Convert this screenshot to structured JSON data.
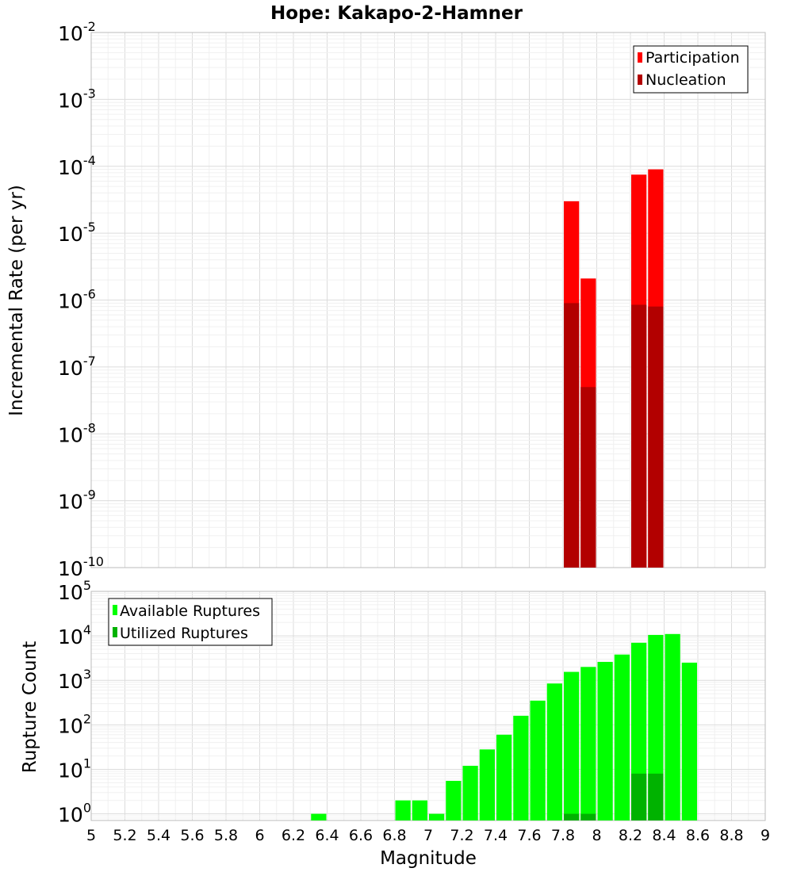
{
  "chart_data": [
    {
      "type": "bar",
      "title": "Hope: Kakapo-2-Hamner",
      "xlabel": "",
      "ylabel": "Incremental Rate (per yr)",
      "xlim": [
        5,
        9
      ],
      "ylim_log10": [
        -10,
        -2
      ],
      "yscale": "log",
      "ytick_exponents": [
        "-10",
        "-9",
        "-8",
        "-7",
        "-6",
        "-5",
        "-4",
        "-3",
        "-2"
      ],
      "bar_width": 0.1,
      "legend_position": "top-right",
      "series": [
        {
          "name": "Participation",
          "color": "#ff0000",
          "x": [
            7.85,
            7.95,
            8.25,
            8.35
          ],
          "values": [
            3e-05,
            2.1e-06,
            7.5e-05,
            9e-05
          ]
        },
        {
          "name": "Nucleation",
          "color": "#b20000",
          "x": [
            7.85,
            7.95,
            8.25,
            8.35
          ],
          "values": [
            9e-07,
            5e-08,
            8.5e-07,
            8e-07
          ]
        }
      ]
    },
    {
      "type": "bar",
      "title": "",
      "xlabel": "Magnitude",
      "ylabel": "Rupture Count",
      "xlim": [
        5,
        9
      ],
      "ylim_log10": [
        -0.15,
        5
      ],
      "yscale": "log",
      "ytick_exponents": [
        "0",
        "1",
        "2",
        "3",
        "4",
        "5"
      ],
      "xtick_labels": [
        "5",
        "5.2",
        "5.4",
        "5.6",
        "5.8",
        "6",
        "6.2",
        "6.4",
        "6.6",
        "6.8",
        "7",
        "7.2",
        "7.4",
        "7.6",
        "7.8",
        "8",
        "8.2",
        "8.4",
        "8.6",
        "8.8",
        "9"
      ],
      "bar_width": 0.1,
      "legend_position": "top-left",
      "series": [
        {
          "name": "Available Ruptures",
          "color": "#00ff00",
          "x": [
            6.35,
            6.85,
            6.95,
            7.05,
            7.15,
            7.25,
            7.35,
            7.45,
            7.55,
            7.65,
            7.75,
            7.85,
            7.95,
            8.05,
            8.15,
            8.25,
            8.35,
            8.45,
            8.55
          ],
          "values": [
            1,
            2,
            2,
            1,
            5.5,
            12,
            28,
            60,
            160,
            350,
            850,
            1550,
            2000,
            2600,
            3800,
            7000,
            10500,
            11000,
            2500
          ]
        },
        {
          "name": "Utilized Ruptures",
          "color": "#00b200",
          "x": [
            7.85,
            7.95,
            8.25,
            8.35
          ],
          "values": [
            1,
            1,
            8,
            8
          ]
        }
      ]
    }
  ]
}
